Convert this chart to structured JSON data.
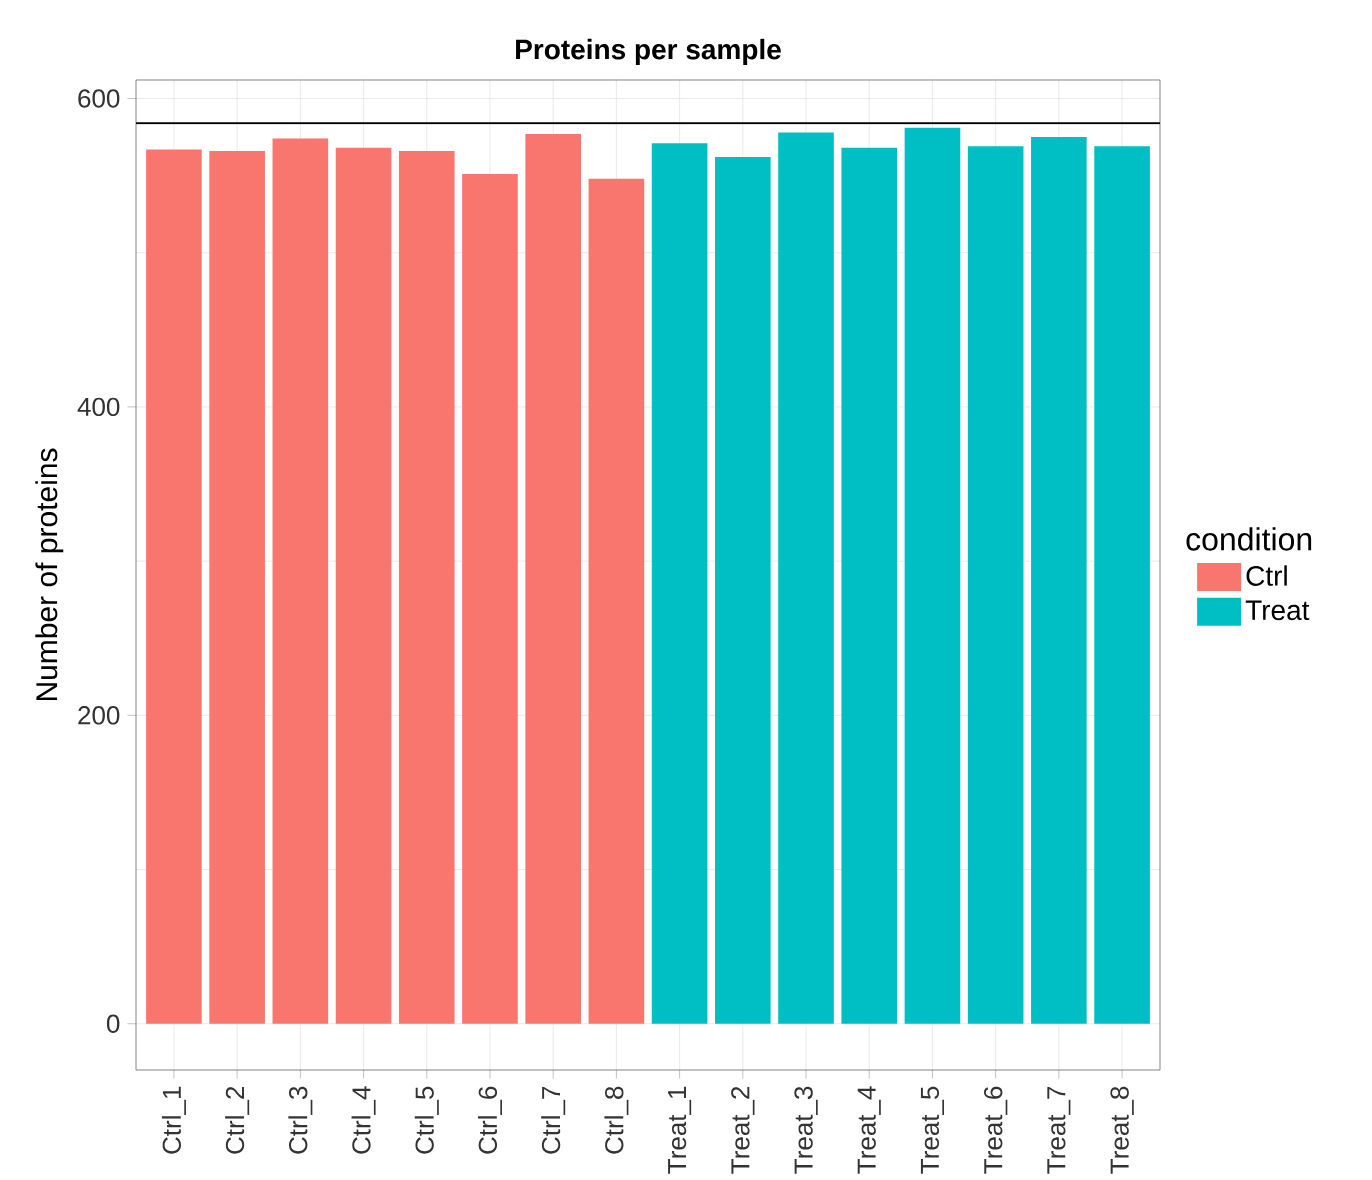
{
  "chart_data": {
    "type": "bar",
    "title": "Proteins per sample",
    "ylabel": "Number of proteins",
    "legend_title": "condition",
    "categories": [
      "Ctrl_1",
      "Ctrl_2",
      "Ctrl_3",
      "Ctrl_4",
      "Ctrl_5",
      "Ctrl_6",
      "Ctrl_7",
      "Ctrl_8",
      "Treat_1",
      "Treat_2",
      "Treat_3",
      "Treat_4",
      "Treat_5",
      "Treat_6",
      "Treat_7",
      "Treat_8"
    ],
    "series": [
      {
        "name": "Ctrl",
        "color": "#f8766d",
        "values": [
          567,
          566,
          574,
          568,
          566,
          551,
          577,
          548,
          null,
          null,
          null,
          null,
          null,
          null,
          null,
          null
        ]
      },
      {
        "name": "Treat",
        "color": "#00bfc4",
        "values": [
          null,
          null,
          null,
          null,
          null,
          null,
          null,
          null,
          571,
          562,
          578,
          568,
          581,
          569,
          575,
          569
        ]
      }
    ],
    "ylim": [
      -30,
      612
    ],
    "yticks": [
      0,
      200,
      400,
      600
    ],
    "ref_lines": [
      {
        "axis": "y",
        "value": 584,
        "color": "#000000"
      }
    ],
    "grid": true,
    "legend": "right"
  }
}
